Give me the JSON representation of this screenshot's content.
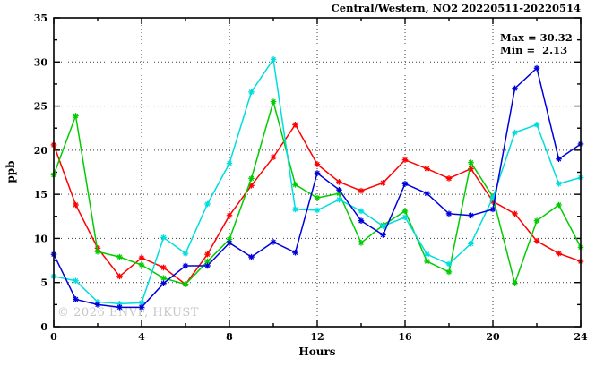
{
  "title": "Central/Western, NO2 20220511-20220514",
  "annotation": {
    "max": "Max = 30.32",
    "min": "Min =  2.13"
  },
  "watermark": "© 2026 ENVF, HKUST",
  "chart_data": {
    "type": "line",
    "title": "Central/Western, NO2 20220511-20220514",
    "xlabel": "Hours",
    "ylabel": "ppb",
    "xlim": [
      0,
      24
    ],
    "ylim": [
      0,
      35
    ],
    "x_ticks": [
      0,
      4,
      8,
      12,
      16,
      20,
      24
    ],
    "y_ticks": [
      0,
      5,
      10,
      15,
      20,
      25,
      30,
      35
    ],
    "x_minor_step": 2,
    "y_minor_step": 2.5,
    "grid": true,
    "legend": "none",
    "max_value": 30.32,
    "min_value": 2.13,
    "x": [
      0,
      1,
      2,
      3,
      4,
      5,
      6,
      7,
      8,
      9,
      10,
      11,
      12,
      13,
      14,
      15,
      16,
      17,
      18,
      19,
      20,
      21,
      22,
      23,
      24
    ],
    "series": [
      {
        "name": "red",
        "color": "#ff0000",
        "values": [
          20.6,
          13.8,
          8.9,
          5.7,
          7.8,
          6.7,
          4.8,
          8.2,
          12.6,
          16.0,
          19.2,
          22.9,
          18.4,
          16.4,
          15.4,
          16.3,
          18.9,
          17.9,
          16.8,
          17.9,
          14.2,
          12.8,
          9.7,
          8.3,
          7.4
        ]
      },
      {
        "name": "green",
        "color": "#00cc00",
        "values": [
          17.2,
          23.9,
          8.5,
          7.9,
          7.0,
          5.5,
          4.8,
          7.4,
          9.9,
          16.8,
          25.5,
          16.1,
          14.6,
          15.1,
          9.5,
          11.5,
          13.1,
          7.4,
          6.2,
          18.6,
          14.7,
          4.9,
          12.0,
          13.8,
          9.0
        ]
      },
      {
        "name": "cyan",
        "color": "#00dddd",
        "values": [
          5.7,
          5.2,
          2.8,
          2.6,
          2.7,
          10.1,
          8.3,
          13.9,
          18.5,
          26.6,
          30.3,
          13.3,
          13.2,
          14.4,
          13.1,
          11.4,
          12.4,
          8.2,
          7.1,
          9.4,
          14.6,
          22.0,
          22.9,
          16.2,
          16.9
        ]
      },
      {
        "name": "blue",
        "color": "#0000dd",
        "values": [
          8.2,
          3.1,
          2.5,
          2.2,
          2.2,
          4.9,
          6.9,
          6.9,
          9.5,
          7.9,
          9.6,
          8.4,
          17.4,
          15.5,
          12.0,
          10.4,
          16.2,
          15.1,
          12.8,
          12.6,
          13.3,
          27.0,
          29.3,
          19.0,
          20.7
        ]
      }
    ]
  }
}
